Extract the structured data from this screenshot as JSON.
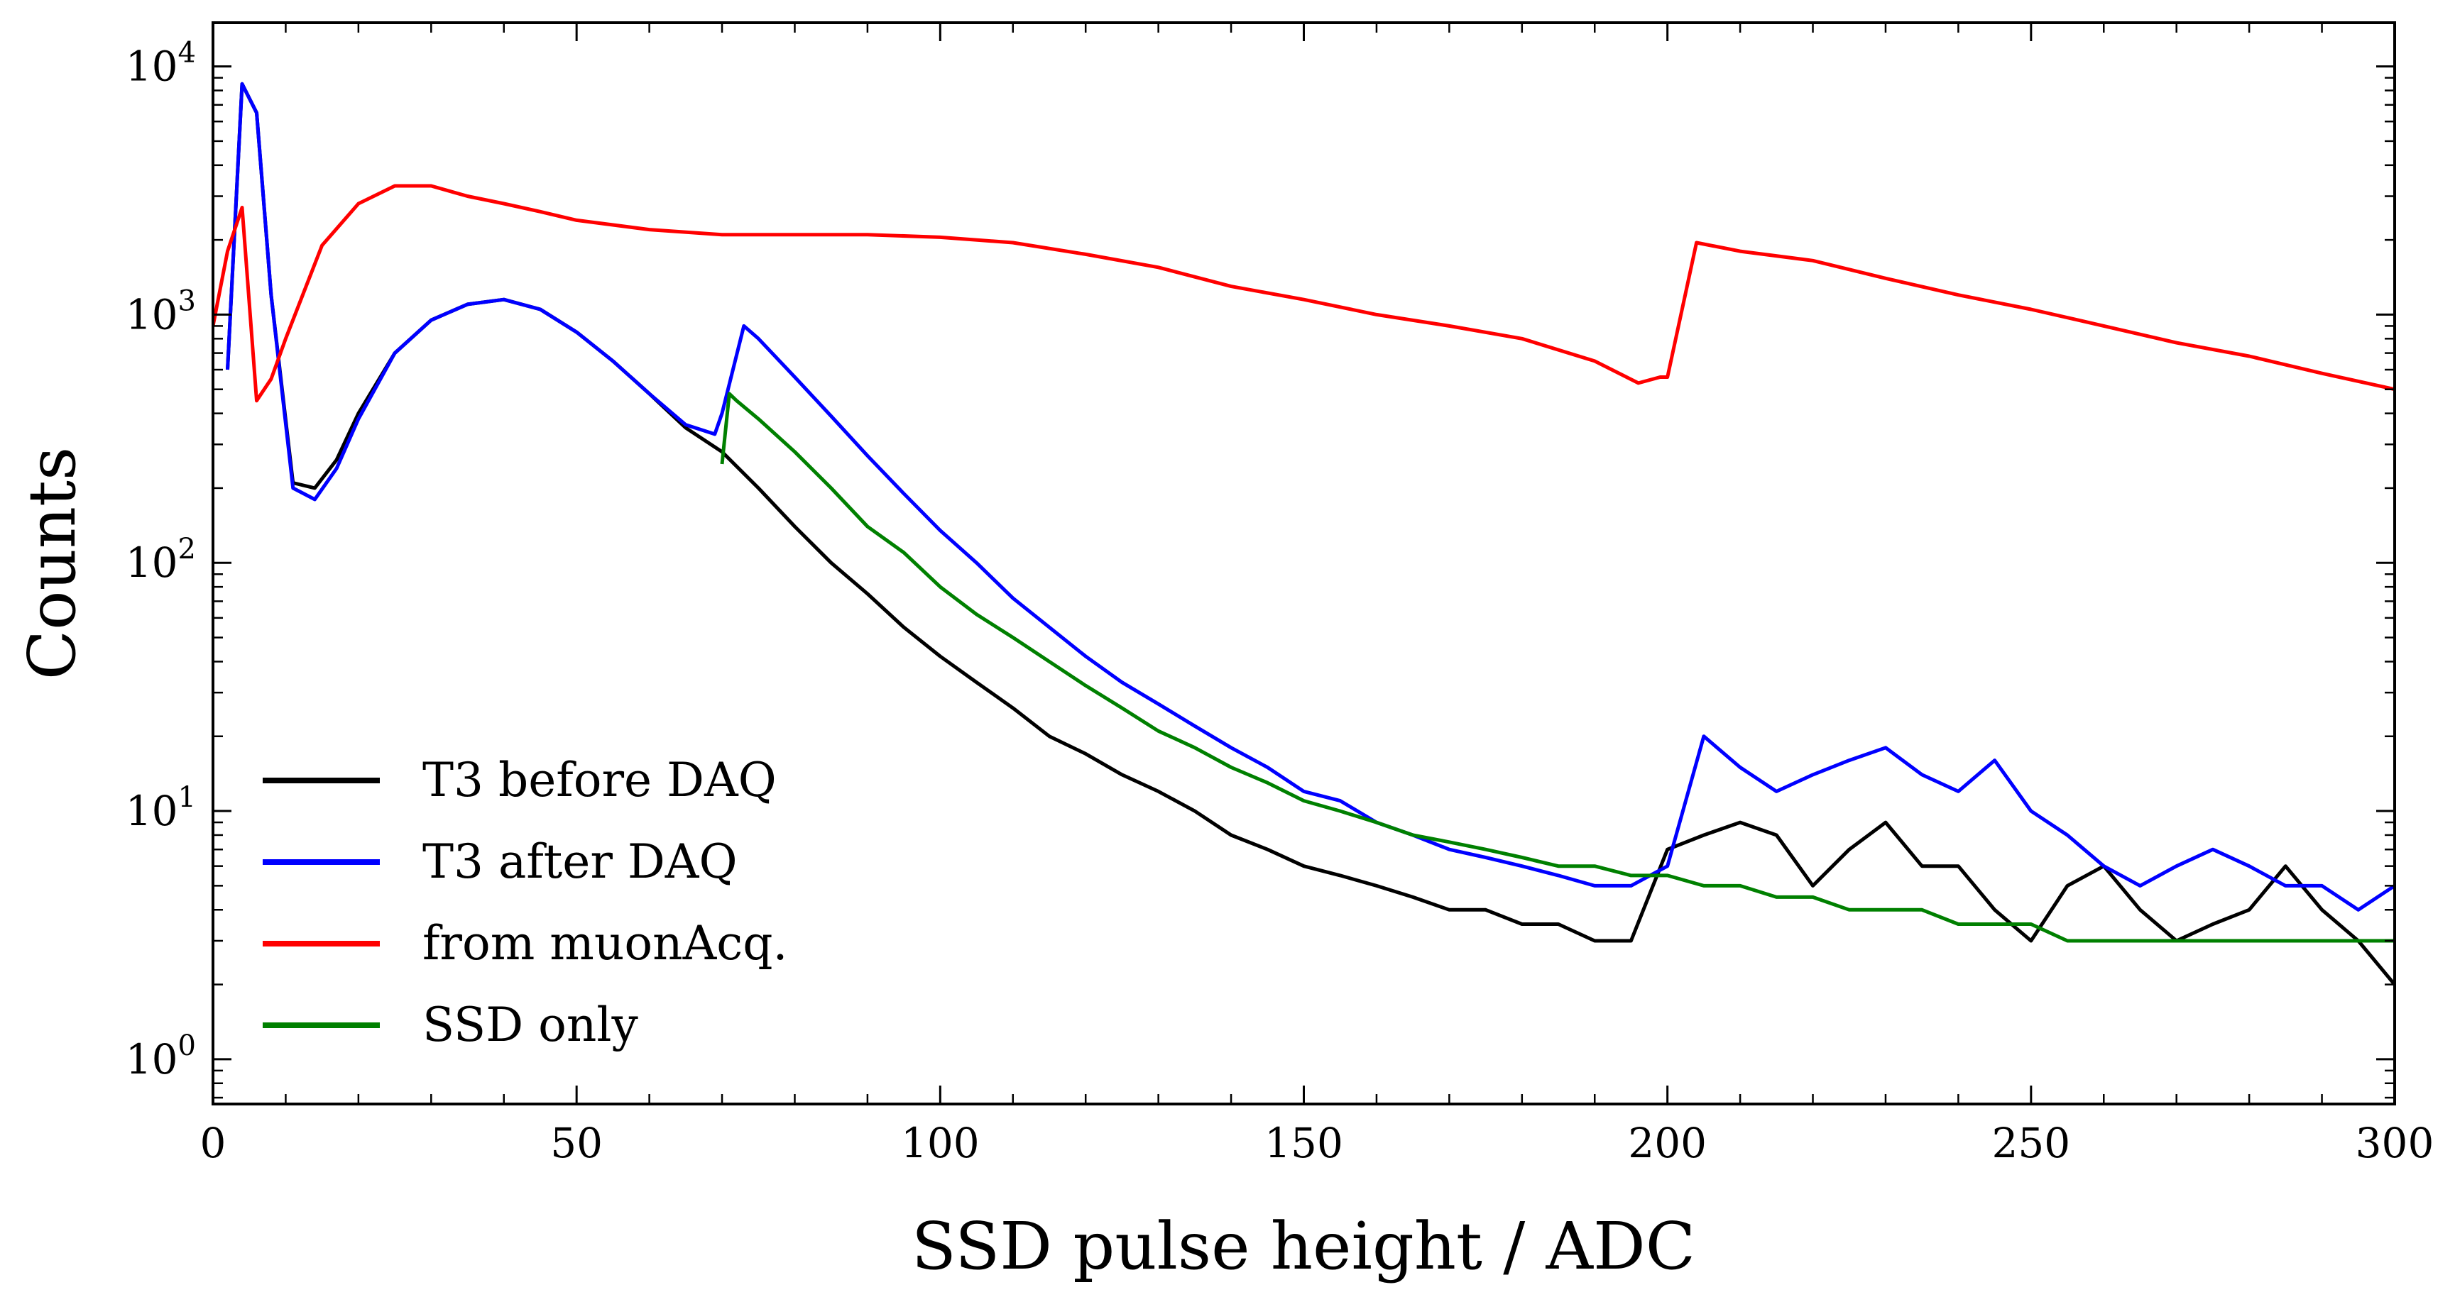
{
  "chart_data": {
    "type": "line",
    "title": "",
    "xlabel": "SSD pulse height / ADC",
    "ylabel": "Counts",
    "xlim": [
      0,
      300
    ],
    "ylim": [
      0.66,
      15000
    ],
    "y_scale": "log",
    "grid": false,
    "legend_position": "lower-left",
    "x_ticks": [
      "0",
      "50",
      "100",
      "150",
      "200",
      "250",
      "300"
    ],
    "x_tick_values": [
      0,
      50,
      100,
      150,
      200,
      250,
      300
    ],
    "y_tick_base": "10",
    "y_tick_exponents": [
      "0",
      "1",
      "2",
      "3",
      "4"
    ],
    "series": [
      {
        "name": "T3 before DAQ",
        "color": "#000000",
        "x": [
          2,
          4,
          6,
          8,
          11,
          14,
          17,
          20,
          25,
          30,
          35,
          40,
          45,
          50,
          55,
          60,
          65,
          70,
          75,
          80,
          85,
          90,
          95,
          100,
          105,
          110,
          115,
          120,
          125,
          130,
          135,
          140,
          145,
          150,
          155,
          160,
          165,
          170,
          175,
          180,
          185,
          190,
          195,
          200,
          205,
          210,
          215,
          220,
          225,
          230,
          235,
          240,
          245,
          250,
          255,
          260,
          265,
          270,
          275,
          280,
          285,
          290,
          295,
          300
        ],
        "y": [
          600,
          8500,
          6500,
          1200,
          210,
          200,
          260,
          400,
          700,
          950,
          1100,
          1150,
          1050,
          850,
          650,
          480,
          350,
          280,
          200,
          140,
          100,
          75,
          55,
          42,
          33,
          26,
          20,
          17,
          14,
          12,
          10,
          8,
          7,
          6,
          5.5,
          5,
          4.5,
          4,
          4,
          3.5,
          3.5,
          3,
          3,
          7,
          8,
          9,
          8,
          5,
          7,
          9,
          6,
          6,
          4,
          3,
          5,
          6,
          4,
          3,
          3.5,
          4,
          6,
          4,
          3,
          2
        ]
      },
      {
        "name": "T3 after DAQ",
        "color": "#0000ff",
        "x": [
          2,
          4,
          6,
          8,
          11,
          14,
          17,
          20,
          25,
          30,
          35,
          40,
          45,
          50,
          55,
          60,
          65,
          69,
          70,
          73,
          75,
          80,
          85,
          90,
          95,
          100,
          105,
          110,
          115,
          120,
          125,
          130,
          135,
          140,
          145,
          150,
          155,
          160,
          165,
          170,
          175,
          180,
          185,
          190,
          195,
          200,
          205,
          210,
          215,
          220,
          225,
          230,
          235,
          240,
          245,
          250,
          255,
          260,
          265,
          270,
          275,
          280,
          285,
          290,
          295,
          300
        ],
        "y": [
          600,
          8500,
          6500,
          1200,
          200,
          180,
          240,
          380,
          700,
          950,
          1100,
          1150,
          1050,
          850,
          650,
          480,
          360,
          330,
          400,
          900,
          800,
          560,
          390,
          270,
          190,
          135,
          100,
          72,
          55,
          42,
          33,
          27,
          22,
          18,
          15,
          12,
          11,
          9,
          8,
          7,
          6.5,
          6,
          5.5,
          5,
          5,
          6,
          20,
          15,
          12,
          14,
          16,
          18,
          14,
          12,
          16,
          10,
          8,
          6,
          5,
          6,
          7,
          6,
          5,
          5,
          4,
          5
        ]
      },
      {
        "name": "from muonAcq.",
        "color": "#ff0000",
        "x": [
          0,
          2,
          4,
          6,
          8,
          10,
          15,
          20,
          25,
          30,
          35,
          40,
          45,
          50,
          60,
          70,
          80,
          90,
          100,
          110,
          120,
          130,
          140,
          150,
          160,
          170,
          180,
          190,
          196,
          199,
          200,
          204,
          210,
          220,
          230,
          240,
          250,
          260,
          270,
          280,
          290,
          300
        ],
        "y": [
          900,
          1800,
          2700,
          450,
          550,
          800,
          1900,
          2800,
          3300,
          3300,
          3000,
          2800,
          2600,
          2400,
          2200,
          2100,
          2100,
          2100,
          2050,
          1950,
          1750,
          1550,
          1300,
          1150,
          1000,
          900,
          800,
          650,
          530,
          560,
          560,
          1950,
          1800,
          1650,
          1400,
          1200,
          1050,
          900,
          770,
          680,
          580,
          500
        ]
      },
      {
        "name": "SSD only",
        "color": "#008000",
        "x": [
          70,
          71,
          72,
          75,
          80,
          85,
          90,
          95,
          100,
          105,
          110,
          115,
          120,
          125,
          130,
          135,
          140,
          145,
          150,
          155,
          160,
          165,
          170,
          175,
          180,
          185,
          190,
          195,
          200,
          205,
          210,
          215,
          220,
          225,
          230,
          235,
          240,
          245,
          250,
          255,
          260,
          265,
          270,
          275,
          280,
          285,
          290,
          295,
          300
        ],
        "y": [
          250,
          480,
          450,
          380,
          280,
          200,
          140,
          110,
          80,
          62,
          50,
          40,
          32,
          26,
          21,
          18,
          15,
          13,
          11,
          10,
          9,
          8,
          7.5,
          7,
          6.5,
          6,
          6,
          5.5,
          5.5,
          5,
          5,
          4.5,
          4.5,
          4,
          4,
          4,
          3.5,
          3.5,
          3.5,
          3,
          3,
          3,
          3,
          3,
          3,
          3,
          3,
          3,
          3
        ]
      }
    ]
  }
}
